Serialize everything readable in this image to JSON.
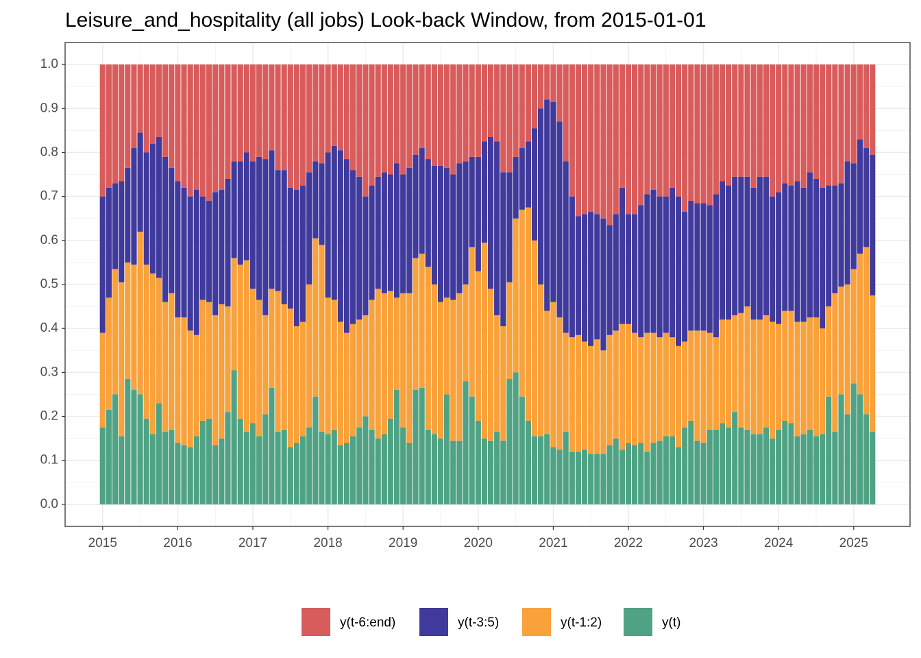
{
  "chart_data": {
    "type": "stacked_bar",
    "title": "Leisure_and_hospitality (all jobs) Look-back Window, from 2015-01-01",
    "x": [
      "2015-01",
      "2015-02",
      "2015-03",
      "2015-04",
      "2015-05",
      "2015-06",
      "2015-07",
      "2015-08",
      "2015-09",
      "2015-10",
      "2015-11",
      "2015-12",
      "2016-01",
      "2016-02",
      "2016-03",
      "2016-04",
      "2016-05",
      "2016-06",
      "2016-07",
      "2016-08",
      "2016-09",
      "2016-10",
      "2016-11",
      "2016-12",
      "2017-01",
      "2017-02",
      "2017-03",
      "2017-04",
      "2017-05",
      "2017-06",
      "2017-07",
      "2017-08",
      "2017-09",
      "2017-10",
      "2017-11",
      "2017-12",
      "2018-01",
      "2018-02",
      "2018-03",
      "2018-04",
      "2018-05",
      "2018-06",
      "2018-07",
      "2018-08",
      "2018-09",
      "2018-10",
      "2018-11",
      "2018-12",
      "2019-01",
      "2019-02",
      "2019-03",
      "2019-04",
      "2019-05",
      "2019-06",
      "2019-07",
      "2019-08",
      "2019-09",
      "2019-10",
      "2019-11",
      "2019-12",
      "2020-01",
      "2020-02",
      "2020-03",
      "2020-04",
      "2020-05",
      "2020-06",
      "2020-07",
      "2020-08",
      "2020-09",
      "2020-10",
      "2020-11",
      "2020-12",
      "2021-01",
      "2021-02",
      "2021-03",
      "2021-04",
      "2021-05",
      "2021-06",
      "2021-07",
      "2021-08",
      "2021-09",
      "2021-10",
      "2021-11",
      "2021-12",
      "2022-01",
      "2022-02",
      "2022-03",
      "2022-04",
      "2022-05",
      "2022-06",
      "2022-07",
      "2022-08",
      "2022-09",
      "2022-10",
      "2022-11",
      "2022-12",
      "2023-01",
      "2023-02",
      "2023-03",
      "2023-04",
      "2023-05",
      "2023-06",
      "2023-07",
      "2023-08",
      "2023-09",
      "2023-10",
      "2023-11",
      "2023-12",
      "2024-01",
      "2024-02",
      "2024-03",
      "2024-04",
      "2024-05",
      "2024-06",
      "2024-07",
      "2024-08",
      "2024-09",
      "2024-10",
      "2024-11",
      "2024-12",
      "2025-01",
      "2025-02",
      "2025-03",
      "2025-04"
    ],
    "series": [
      {
        "name": "y(t-6:end)",
        "color": "#d85c5c",
        "values": [
          0.3,
          0.28,
          0.27,
          0.265,
          0.235,
          0.19,
          0.155,
          0.2,
          0.18,
          0.165,
          0.21,
          0.235,
          0.265,
          0.28,
          0.3,
          0.285,
          0.3,
          0.31,
          0.29,
          0.285,
          0.26,
          0.22,
          0.22,
          0.2,
          0.22,
          0.21,
          0.215,
          0.195,
          0.24,
          0.24,
          0.28,
          0.285,
          0.275,
          0.245,
          0.22,
          0.225,
          0.2,
          0.185,
          0.195,
          0.215,
          0.24,
          0.255,
          0.3,
          0.275,
          0.255,
          0.245,
          0.25,
          0.225,
          0.25,
          0.235,
          0.205,
          0.19,
          0.215,
          0.23,
          0.23,
          0.235,
          0.25,
          0.225,
          0.22,
          0.21,
          0.21,
          0.175,
          0.165,
          0.175,
          0.245,
          0.245,
          0.21,
          0.19,
          0.175,
          0.145,
          0.1,
          0.08,
          0.085,
          0.13,
          0.22,
          0.3,
          0.345,
          0.34,
          0.335,
          0.34,
          0.35,
          0.365,
          0.34,
          0.28,
          0.34,
          0.34,
          0.32,
          0.295,
          0.285,
          0.3,
          0.3,
          0.28,
          0.3,
          0.335,
          0.31,
          0.315,
          0.315,
          0.32,
          0.295,
          0.265,
          0.275,
          0.255,
          0.255,
          0.255,
          0.28,
          0.255,
          0.255,
          0.3,
          0.29,
          0.27,
          0.275,
          0.265,
          0.28,
          0.245,
          0.26,
          0.28,
          0.275,
          0.275,
          0.27,
          0.22,
          0.225,
          0.17,
          0.19,
          0.205
        ]
      },
      {
        "name": "y(t-3:5)",
        "color": "#3f3a9c",
        "values": [
          0.31,
          0.25,
          0.195,
          0.23,
          0.215,
          0.265,
          0.225,
          0.255,
          0.295,
          0.32,
          0.33,
          0.285,
          0.31,
          0.295,
          0.305,
          0.33,
          0.235,
          0.23,
          0.28,
          0.26,
          0.29,
          0.22,
          0.235,
          0.245,
          0.29,
          0.325,
          0.355,
          0.315,
          0.275,
          0.305,
          0.275,
          0.31,
          0.31,
          0.255,
          0.175,
          0.185,
          0.33,
          0.35,
          0.39,
          0.395,
          0.35,
          0.325,
          0.27,
          0.26,
          0.255,
          0.275,
          0.265,
          0.305,
          0.27,
          0.285,
          0.235,
          0.24,
          0.245,
          0.27,
          0.31,
          0.295,
          0.285,
          0.295,
          0.28,
          0.205,
          0.26,
          0.23,
          0.345,
          0.395,
          0.35,
          0.25,
          0.14,
          0.14,
          0.15,
          0.255,
          0.4,
          0.48,
          0.455,
          0.445,
          0.39,
          0.32,
          0.27,
          0.29,
          0.305,
          0.285,
          0.3,
          0.25,
          0.265,
          0.31,
          0.25,
          0.27,
          0.3,
          0.315,
          0.325,
          0.32,
          0.31,
          0.34,
          0.34,
          0.295,
          0.295,
          0.29,
          0.29,
          0.29,
          0.325,
          0.315,
          0.305,
          0.315,
          0.31,
          0.295,
          0.3,
          0.325,
          0.315,
          0.285,
          0.3,
          0.29,
          0.285,
          0.32,
          0.305,
          0.33,
          0.315,
          0.32,
          0.275,
          0.245,
          0.235,
          0.28,
          0.24,
          0.26,
          0.225,
          0.32
        ]
      },
      {
        "name": "y(t-1:2)",
        "color": "#f9a13a",
        "values": [
          0.215,
          0.255,
          0.285,
          0.35,
          0.265,
          0.285,
          0.37,
          0.35,
          0.365,
          0.285,
          0.295,
          0.31,
          0.285,
          0.29,
          0.265,
          0.23,
          0.275,
          0.265,
          0.295,
          0.305,
          0.24,
          0.255,
          0.35,
          0.39,
          0.305,
          0.31,
          0.225,
          0.225,
          0.32,
          0.285,
          0.315,
          0.265,
          0.26,
          0.325,
          0.36,
          0.425,
          0.31,
          0.295,
          0.28,
          0.25,
          0.255,
          0.245,
          0.23,
          0.295,
          0.34,
          0.32,
          0.29,
          0.21,
          0.305,
          0.34,
          0.3,
          0.305,
          0.37,
          0.34,
          0.31,
          0.22,
          0.32,
          0.335,
          0.22,
          0.34,
          0.34,
          0.445,
          0.345,
          0.265,
          0.26,
          0.22,
          0.35,
          0.425,
          0.485,
          0.445,
          0.345,
          0.28,
          0.33,
          0.3,
          0.225,
          0.26,
          0.265,
          0.245,
          0.245,
          0.26,
          0.235,
          0.25,
          0.245,
          0.285,
          0.27,
          0.255,
          0.24,
          0.27,
          0.25,
          0.235,
          0.235,
          0.225,
          0.23,
          0.195,
          0.205,
          0.25,
          0.255,
          0.22,
          0.21,
          0.235,
          0.245,
          0.22,
          0.26,
          0.28,
          0.26,
          0.26,
          0.255,
          0.265,
          0.24,
          0.25,
          0.255,
          0.26,
          0.255,
          0.255,
          0.27,
          0.24,
          0.205,
          0.315,
          0.245,
          0.295,
          0.26,
          0.32,
          0.38,
          0.31
        ]
      },
      {
        "name": "y(t)",
        "color": "#4fa384",
        "values": [
          0.175,
          0.215,
          0.25,
          0.155,
          0.285,
          0.26,
          0.25,
          0.195,
          0.16,
          0.23,
          0.165,
          0.17,
          0.14,
          0.135,
          0.13,
          0.155,
          0.19,
          0.195,
          0.135,
          0.15,
          0.21,
          0.305,
          0.195,
          0.165,
          0.185,
          0.155,
          0.205,
          0.265,
          0.165,
          0.17,
          0.13,
          0.14,
          0.155,
          0.175,
          0.245,
          0.165,
          0.16,
          0.17,
          0.135,
          0.14,
          0.155,
          0.175,
          0.2,
          0.17,
          0.15,
          0.16,
          0.195,
          0.26,
          0.175,
          0.14,
          0.26,
          0.265,
          0.17,
          0.16,
          0.15,
          0.25,
          0.145,
          0.145,
          0.28,
          0.245,
          0.19,
          0.15,
          0.145,
          0.165,
          0.145,
          0.285,
          0.3,
          0.245,
          0.19,
          0.155,
          0.155,
          0.16,
          0.13,
          0.125,
          0.165,
          0.12,
          0.12,
          0.125,
          0.115,
          0.115,
          0.115,
          0.135,
          0.15,
          0.125,
          0.14,
          0.135,
          0.14,
          0.12,
          0.14,
          0.145,
          0.155,
          0.155,
          0.13,
          0.175,
          0.19,
          0.145,
          0.14,
          0.17,
          0.17,
          0.185,
          0.175,
          0.21,
          0.175,
          0.17,
          0.16,
          0.16,
          0.175,
          0.15,
          0.17,
          0.19,
          0.185,
          0.155,
          0.16,
          0.17,
          0.155,
          0.16,
          0.245,
          0.165,
          0.25,
          0.205,
          0.275,
          0.25,
          0.205,
          0.165
        ]
      }
    ],
    "xlim": [
      "2014-07",
      "2025-10"
    ],
    "xticks": [
      {
        "value": "2015-01",
        "label": "2015"
      },
      {
        "value": "2016-01",
        "label": "2016"
      },
      {
        "value": "2017-01",
        "label": "2017"
      },
      {
        "value": "2018-01",
        "label": "2018"
      },
      {
        "value": "2019-01",
        "label": "2019"
      },
      {
        "value": "2020-01",
        "label": "2020"
      },
      {
        "value": "2021-01",
        "label": "2021"
      },
      {
        "value": "2022-01",
        "label": "2022"
      },
      {
        "value": "2023-01",
        "label": "2023"
      },
      {
        "value": "2024-01",
        "label": "2024"
      },
      {
        "value": "2025-01",
        "label": "2025"
      }
    ],
    "ylim": [
      -0.05,
      1.05
    ],
    "yticks": [
      {
        "value": 0,
        "label": "0.0"
      },
      0.1,
      0.2,
      0.3,
      0.4,
      0.5,
      0.6,
      0.7,
      0.8,
      0.9,
      {
        "value": 1,
        "label": "1.0"
      }
    ],
    "grid": true,
    "legend": "bottom"
  }
}
